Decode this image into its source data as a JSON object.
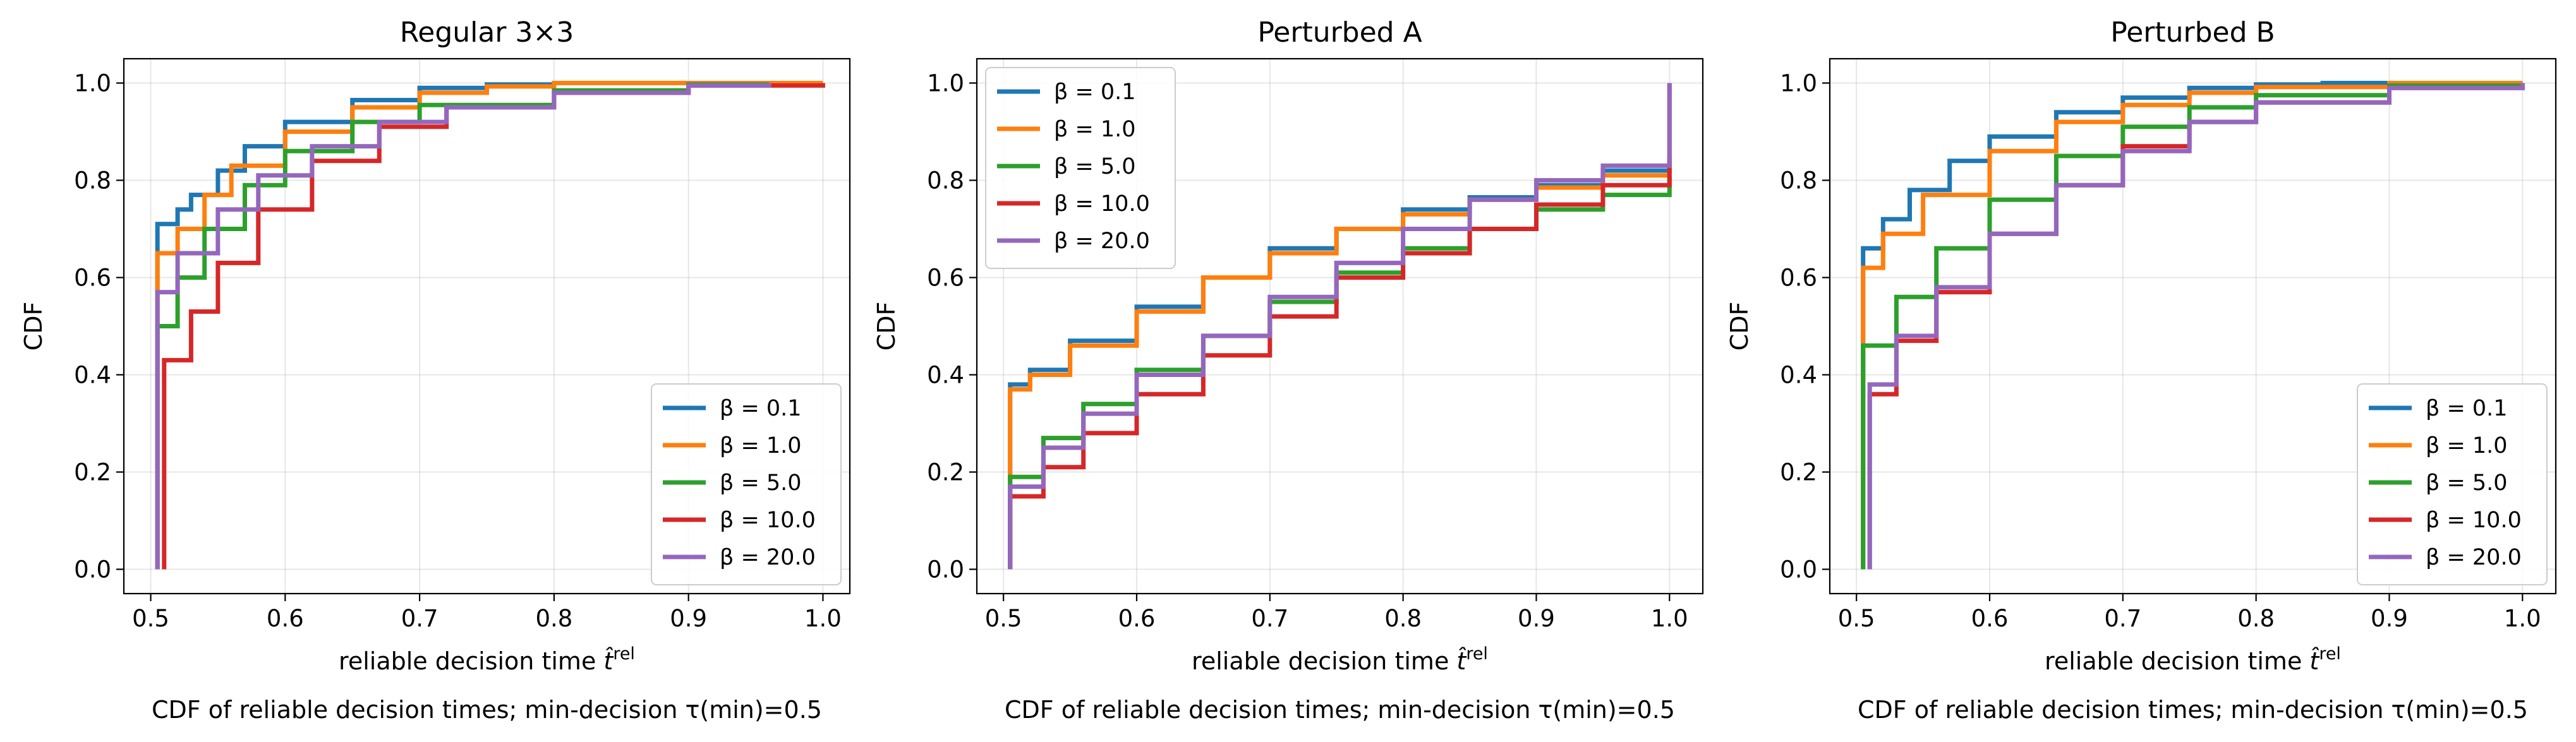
{
  "chart_data": [
    {
      "type": "line",
      "title": "Regular 3×3",
      "xlabel": "reliable decision time",
      "xlabel_symbol": "t̂",
      "xlabel_sup": "rel",
      "ylabel": "CDF",
      "caption": "CDF of reliable decision times; min-decision τ(min)=0.5",
      "xlim": [
        0.48,
        1.02
      ],
      "ylim": [
        -0.05,
        1.05
      ],
      "xticks": [
        "0.5",
        "0.6",
        "0.7",
        "0.8",
        "0.9",
        "1.0"
      ],
      "yticks": [
        "0.0",
        "0.2",
        "0.4",
        "0.6",
        "0.8",
        "1.0"
      ],
      "grid": true,
      "legend_position": "lower-right",
      "series": [
        {
          "name": "β = 0.1",
          "color": "#1f77b4",
          "points": [
            [
              0.505,
              0.0
            ],
            [
              0.505,
              0.71
            ],
            [
              0.52,
              0.74
            ],
            [
              0.53,
              0.77
            ],
            [
              0.55,
              0.82
            ],
            [
              0.57,
              0.87
            ],
            [
              0.6,
              0.92
            ],
            [
              0.65,
              0.965
            ],
            [
              0.7,
              0.99
            ],
            [
              0.75,
              0.997
            ],
            [
              0.8,
              1.0
            ],
            [
              0.97,
              1.0
            ]
          ]
        },
        {
          "name": "β = 1.0",
          "color": "#ff7f0e",
          "points": [
            [
              0.505,
              0.0
            ],
            [
              0.505,
              0.65
            ],
            [
              0.52,
              0.7
            ],
            [
              0.54,
              0.77
            ],
            [
              0.56,
              0.83
            ],
            [
              0.6,
              0.9
            ],
            [
              0.65,
              0.95
            ],
            [
              0.7,
              0.98
            ],
            [
              0.75,
              0.993
            ],
            [
              0.8,
              1.0
            ],
            [
              1.0,
              1.0
            ]
          ]
        },
        {
          "name": "β = 5.0",
          "color": "#2ca02c",
          "points": [
            [
              0.505,
              0.0
            ],
            [
              0.505,
              0.5
            ],
            [
              0.52,
              0.6
            ],
            [
              0.54,
              0.7
            ],
            [
              0.57,
              0.79
            ],
            [
              0.6,
              0.86
            ],
            [
              0.65,
              0.92
            ],
            [
              0.7,
              0.955
            ],
            [
              0.8,
              0.985
            ],
            [
              0.9,
              0.997
            ],
            [
              0.96,
              1.0
            ]
          ]
        },
        {
          "name": "β = 10.0",
          "color": "#d62728",
          "points": [
            [
              0.51,
              0.0
            ],
            [
              0.51,
              0.43
            ],
            [
              0.53,
              0.53
            ],
            [
              0.55,
              0.63
            ],
            [
              0.58,
              0.74
            ],
            [
              0.62,
              0.84
            ],
            [
              0.67,
              0.91
            ],
            [
              0.72,
              0.95
            ],
            [
              0.8,
              0.98
            ],
            [
              0.9,
              0.995
            ],
            [
              1.0,
              1.0
            ]
          ]
        },
        {
          "name": "β = 20.0",
          "color": "#9467bd",
          "points": [
            [
              0.505,
              0.0
            ],
            [
              0.505,
              0.57
            ],
            [
              0.52,
              0.65
            ],
            [
              0.55,
              0.74
            ],
            [
              0.58,
              0.81
            ],
            [
              0.62,
              0.87
            ],
            [
              0.67,
              0.92
            ],
            [
              0.72,
              0.95
            ],
            [
              0.8,
              0.98
            ],
            [
              0.9,
              0.995
            ],
            [
              0.96,
              1.0
            ]
          ]
        }
      ]
    },
    {
      "type": "line",
      "title": "Perturbed A",
      "xlabel": "reliable decision time",
      "xlabel_symbol": "t̂",
      "xlabel_sup": "rel",
      "ylabel": "CDF",
      "caption": "CDF of reliable decision times; min-decision τ(min)=0.5",
      "xlim": [
        0.48,
        1.025
      ],
      "ylim": [
        -0.05,
        1.05
      ],
      "xticks": [
        "0.5",
        "0.6",
        "0.7",
        "0.8",
        "0.9",
        "1.0"
      ],
      "yticks": [
        "0.0",
        "0.2",
        "0.4",
        "0.6",
        "0.8",
        "1.0"
      ],
      "grid": true,
      "legend_position": "upper-left",
      "series": [
        {
          "name": "β = 0.1",
          "color": "#1f77b4",
          "points": [
            [
              0.505,
              0.0
            ],
            [
              0.505,
              0.38
            ],
            [
              0.52,
              0.41
            ],
            [
              0.55,
              0.47
            ],
            [
              0.6,
              0.54
            ],
            [
              0.65,
              0.6
            ],
            [
              0.7,
              0.66
            ],
            [
              0.75,
              0.7
            ],
            [
              0.8,
              0.74
            ],
            [
              0.85,
              0.765
            ],
            [
              0.9,
              0.79
            ],
            [
              0.95,
              0.82
            ],
            [
              1.0,
              0.85
            ]
          ]
        },
        {
          "name": "β = 1.0",
          "color": "#ff7f0e",
          "points": [
            [
              0.505,
              0.0
            ],
            [
              0.505,
              0.37
            ],
            [
              0.52,
              0.4
            ],
            [
              0.55,
              0.46
            ],
            [
              0.6,
              0.53
            ],
            [
              0.65,
              0.6
            ],
            [
              0.7,
              0.65
            ],
            [
              0.75,
              0.7
            ],
            [
              0.8,
              0.73
            ],
            [
              0.85,
              0.76
            ],
            [
              0.9,
              0.785
            ],
            [
              0.95,
              0.81
            ],
            [
              1.0,
              0.84
            ]
          ]
        },
        {
          "name": "β = 5.0",
          "color": "#2ca02c",
          "points": [
            [
              0.505,
              0.0
            ],
            [
              0.505,
              0.19
            ],
            [
              0.53,
              0.27
            ],
            [
              0.56,
              0.34
            ],
            [
              0.6,
              0.41
            ],
            [
              0.65,
              0.48
            ],
            [
              0.7,
              0.55
            ],
            [
              0.75,
              0.61
            ],
            [
              0.8,
              0.66
            ],
            [
              0.85,
              0.7
            ],
            [
              0.9,
              0.74
            ],
            [
              0.95,
              0.77
            ],
            [
              1.0,
              0.81
            ]
          ]
        },
        {
          "name": "β = 10.0",
          "color": "#d62728",
          "points": [
            [
              0.505,
              0.0
            ],
            [
              0.505,
              0.15
            ],
            [
              0.53,
              0.21
            ],
            [
              0.56,
              0.28
            ],
            [
              0.6,
              0.36
            ],
            [
              0.65,
              0.44
            ],
            [
              0.7,
              0.52
            ],
            [
              0.75,
              0.6
            ],
            [
              0.8,
              0.65
            ],
            [
              0.85,
              0.7
            ],
            [
              0.9,
              0.75
            ],
            [
              0.95,
              0.79
            ],
            [
              1.0,
              0.83
            ],
            [
              1.0,
              1.0
            ]
          ]
        },
        {
          "name": "β = 20.0",
          "color": "#9467bd",
          "points": [
            [
              0.505,
              0.0
            ],
            [
              0.505,
              0.17
            ],
            [
              0.53,
              0.25
            ],
            [
              0.56,
              0.32
            ],
            [
              0.6,
              0.4
            ],
            [
              0.65,
              0.48
            ],
            [
              0.7,
              0.56
            ],
            [
              0.75,
              0.63
            ],
            [
              0.8,
              0.7
            ],
            [
              0.85,
              0.76
            ],
            [
              0.9,
              0.8
            ],
            [
              0.95,
              0.83
            ],
            [
              1.0,
              0.865
            ],
            [
              1.0,
              1.0
            ]
          ]
        }
      ]
    },
    {
      "type": "line",
      "title": "Perturbed B",
      "xlabel": "reliable decision time",
      "xlabel_symbol": "t̂",
      "xlabel_sup": "rel",
      "ylabel": "CDF",
      "caption": "CDF of reliable decision times; min-decision τ(min)=0.5",
      "xlim": [
        0.48,
        1.025
      ],
      "ylim": [
        -0.05,
        1.05
      ],
      "xticks": [
        "0.5",
        "0.6",
        "0.7",
        "0.8",
        "0.9",
        "1.0"
      ],
      "yticks": [
        "0.0",
        "0.2",
        "0.4",
        "0.6",
        "0.8",
        "1.0"
      ],
      "grid": true,
      "legend_position": "lower-right",
      "series": [
        {
          "name": "β = 0.1",
          "color": "#1f77b4",
          "points": [
            [
              0.505,
              0.0
            ],
            [
              0.505,
              0.66
            ],
            [
              0.52,
              0.72
            ],
            [
              0.54,
              0.78
            ],
            [
              0.57,
              0.84
            ],
            [
              0.6,
              0.89
            ],
            [
              0.65,
              0.94
            ],
            [
              0.7,
              0.97
            ],
            [
              0.75,
              0.99
            ],
            [
              0.8,
              0.997
            ],
            [
              0.85,
              1.0
            ],
            [
              1.0,
              1.0
            ]
          ]
        },
        {
          "name": "β = 1.0",
          "color": "#ff7f0e",
          "points": [
            [
              0.505,
              0.0
            ],
            [
              0.505,
              0.62
            ],
            [
              0.52,
              0.69
            ],
            [
              0.55,
              0.77
            ],
            [
              0.6,
              0.86
            ],
            [
              0.65,
              0.92
            ],
            [
              0.7,
              0.955
            ],
            [
              0.75,
              0.98
            ],
            [
              0.8,
              0.992
            ],
            [
              0.9,
              1.0
            ],
            [
              1.0,
              1.0
            ]
          ]
        },
        {
          "name": "β = 5.0",
          "color": "#2ca02c",
          "points": [
            [
              0.505,
              0.0
            ],
            [
              0.505,
              0.46
            ],
            [
              0.53,
              0.56
            ],
            [
              0.56,
              0.66
            ],
            [
              0.6,
              0.76
            ],
            [
              0.65,
              0.85
            ],
            [
              0.7,
              0.91
            ],
            [
              0.75,
              0.95
            ],
            [
              0.8,
              0.975
            ],
            [
              0.9,
              0.995
            ],
            [
              1.0,
              1.0
            ]
          ]
        },
        {
          "name": "β = 10.0",
          "color": "#d62728",
          "points": [
            [
              0.51,
              0.0
            ],
            [
              0.51,
              0.36
            ],
            [
              0.53,
              0.47
            ],
            [
              0.56,
              0.57
            ],
            [
              0.6,
              0.69
            ],
            [
              0.65,
              0.79
            ],
            [
              0.7,
              0.87
            ],
            [
              0.75,
              0.92
            ],
            [
              0.8,
              0.96
            ],
            [
              0.9,
              0.99
            ],
            [
              1.0,
              1.0
            ]
          ]
        },
        {
          "name": "β = 20.0",
          "color": "#9467bd",
          "points": [
            [
              0.51,
              0.0
            ],
            [
              0.51,
              0.38
            ],
            [
              0.53,
              0.48
            ],
            [
              0.56,
              0.58
            ],
            [
              0.6,
              0.69
            ],
            [
              0.65,
              0.79
            ],
            [
              0.7,
              0.86
            ],
            [
              0.75,
              0.92
            ],
            [
              0.8,
              0.96
            ],
            [
              0.9,
              0.99
            ],
            [
              1.0,
              1.0
            ]
          ]
        }
      ]
    }
  ]
}
